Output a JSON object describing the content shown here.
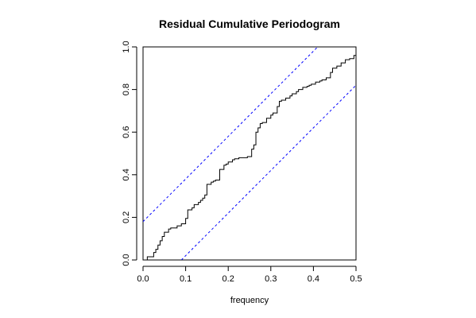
{
  "chart_data": {
    "type": "line",
    "title": "Residual Cumulative Periodogram",
    "xlabel": "frequency",
    "ylabel": "",
    "xlim": [
      0,
      0.5
    ],
    "ylim": [
      0,
      1
    ],
    "x_ticks": [
      "0.0",
      "0.1",
      "0.2",
      "0.3",
      "0.4",
      "0.5"
    ],
    "y_ticks": [
      "0.0",
      "0.2",
      "0.4",
      "0.6",
      "0.8",
      "1.0"
    ],
    "grid": false,
    "legend": "none",
    "series": [
      {
        "style": "step",
        "color": "#000000",
        "x": [
          0.0,
          0.01,
          0.025,
          0.03,
          0.035,
          0.04,
          0.045,
          0.05,
          0.06,
          0.065,
          0.08,
          0.09,
          0.1,
          0.105,
          0.115,
          0.12,
          0.13,
          0.135,
          0.14,
          0.145,
          0.15,
          0.16,
          0.165,
          0.17,
          0.18,
          0.19,
          0.195,
          0.2,
          0.21,
          0.215,
          0.225,
          0.235,
          0.245,
          0.255,
          0.26,
          0.265,
          0.27,
          0.275,
          0.28,
          0.29,
          0.3,
          0.305,
          0.315,
          0.32,
          0.325,
          0.335,
          0.345,
          0.35,
          0.36,
          0.365,
          0.375,
          0.385,
          0.39,
          0.395,
          0.405,
          0.415,
          0.42,
          0.43,
          0.44,
          0.445,
          0.455,
          0.465,
          0.475,
          0.485,
          0.495,
          0.5
        ],
        "y": [
          0.0,
          0.015,
          0.035,
          0.05,
          0.07,
          0.09,
          0.11,
          0.13,
          0.145,
          0.15,
          0.16,
          0.17,
          0.195,
          0.235,
          0.245,
          0.26,
          0.27,
          0.28,
          0.29,
          0.305,
          0.355,
          0.365,
          0.37,
          0.375,
          0.425,
          0.445,
          0.45,
          0.46,
          0.47,
          0.475,
          0.48,
          0.48,
          0.485,
          0.52,
          0.54,
          0.6,
          0.62,
          0.64,
          0.645,
          0.665,
          0.68,
          0.69,
          0.72,
          0.745,
          0.75,
          0.76,
          0.77,
          0.78,
          0.79,
          0.8,
          0.81,
          0.815,
          0.82,
          0.825,
          0.835,
          0.84,
          0.845,
          0.855,
          0.88,
          0.9,
          0.91,
          0.925,
          0.94,
          0.945,
          0.96,
          1.0
        ]
      },
      {
        "style": "dashed",
        "color": "#0000ff",
        "x": [
          0.0,
          0.41
        ],
        "y": [
          0.18,
          1.0
        ]
      },
      {
        "style": "dashed",
        "color": "#0000ff",
        "x": [
          0.09,
          0.5
        ],
        "y": [
          0.0,
          0.82
        ]
      }
    ]
  }
}
